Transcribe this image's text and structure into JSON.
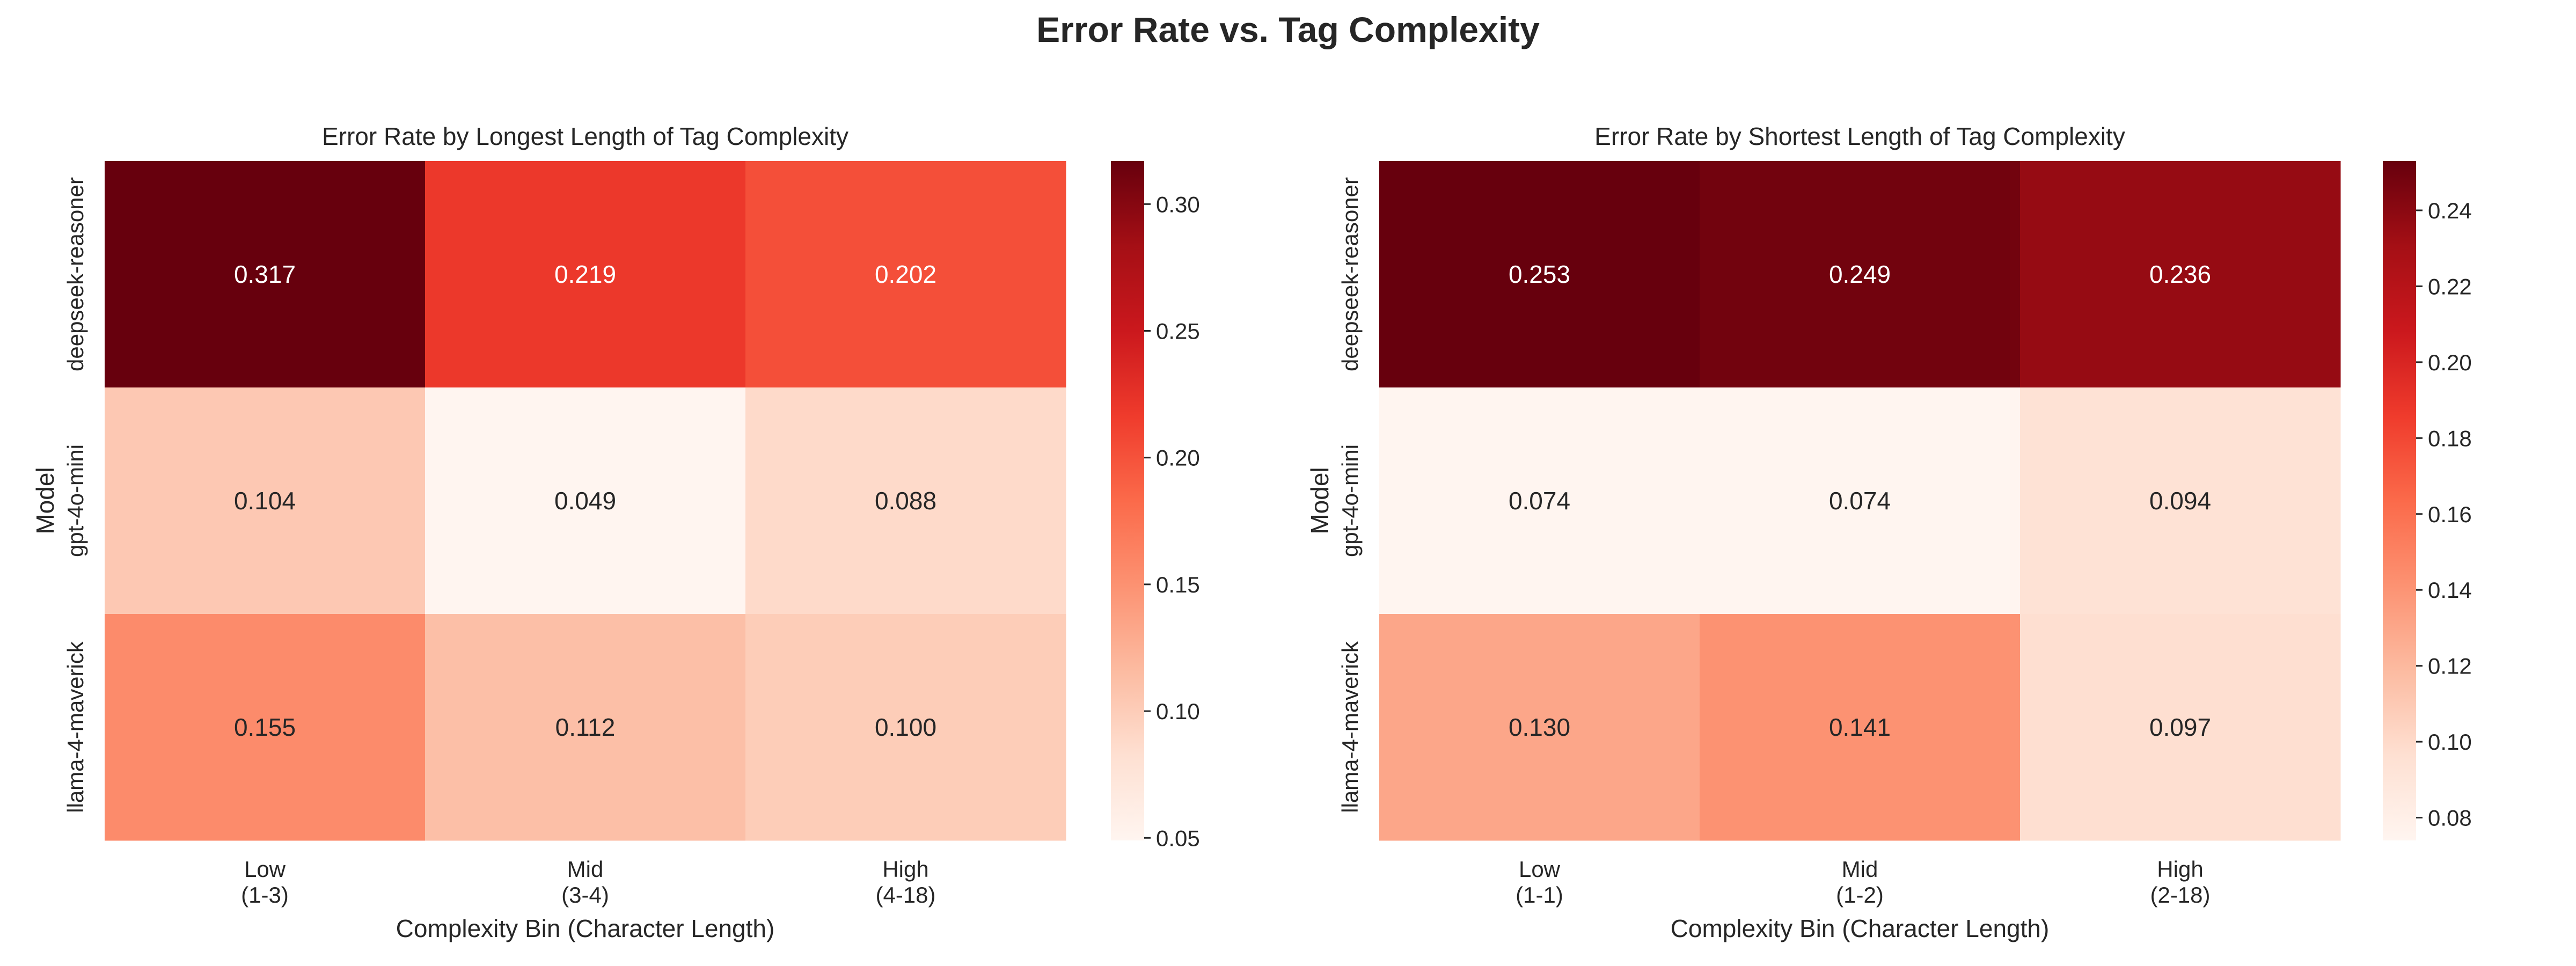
{
  "figure_title": "Error Rate vs. Tag Complexity",
  "chart_data": [
    {
      "type": "heatmap",
      "title": "Error Rate by Longest Length of Tag Complexity",
      "xlabel": "Complexity Bin (Character Length)",
      "ylabel": "Model",
      "x_categories": [
        "Low\n(1-3)",
        "Mid\n(3-4)",
        "High\n(4-18)"
      ],
      "y_categories": [
        "deepseek-reasoner",
        "gpt-4o-mini",
        "llama-4-maverick"
      ],
      "values": [
        [
          0.317,
          0.219,
          0.202
        ],
        [
          0.104,
          0.049,
          0.088
        ],
        [
          0.155,
          0.112,
          0.1
        ]
      ],
      "value_labels": [
        [
          "0.317",
          "0.219",
          "0.202"
        ],
        [
          "0.104",
          "0.049",
          "0.088"
        ],
        [
          "0.155",
          "0.112",
          "0.100"
        ]
      ],
      "colormap": "Reds",
      "colorbar": {
        "range": [
          0.049,
          0.317
        ],
        "ticks": [
          0.05,
          0.1,
          0.15,
          0.2,
          0.25,
          0.3
        ],
        "tick_labels": [
          "0.05",
          "0.10",
          "0.15",
          "0.20",
          "0.25",
          "0.30"
        ]
      }
    },
    {
      "type": "heatmap",
      "title": "Error Rate by Shortest Length of Tag Complexity",
      "xlabel": "Complexity Bin (Character Length)",
      "ylabel": "Model",
      "x_categories": [
        "Low\n(1-1)",
        "Mid\n(1-2)",
        "High\n(2-18)"
      ],
      "y_categories": [
        "deepseek-reasoner",
        "gpt-4o-mini",
        "llama-4-maverick"
      ],
      "values": [
        [
          0.253,
          0.249,
          0.236
        ],
        [
          0.074,
          0.074,
          0.094
        ],
        [
          0.13,
          0.141,
          0.097
        ]
      ],
      "value_labels": [
        [
          "0.253",
          "0.249",
          "0.236"
        ],
        [
          "0.074",
          "0.074",
          "0.094"
        ],
        [
          "0.130",
          "0.141",
          "0.097"
        ]
      ],
      "colormap": "Reds",
      "colorbar": {
        "range": [
          0.074,
          0.253
        ],
        "ticks": [
          0.08,
          0.1,
          0.12,
          0.14,
          0.16,
          0.18,
          0.2,
          0.22,
          0.24
        ],
        "tick_labels": [
          "0.08",
          "0.10",
          "0.12",
          "0.14",
          "0.16",
          "0.18",
          "0.20",
          "0.22",
          "0.24"
        ]
      }
    }
  ]
}
